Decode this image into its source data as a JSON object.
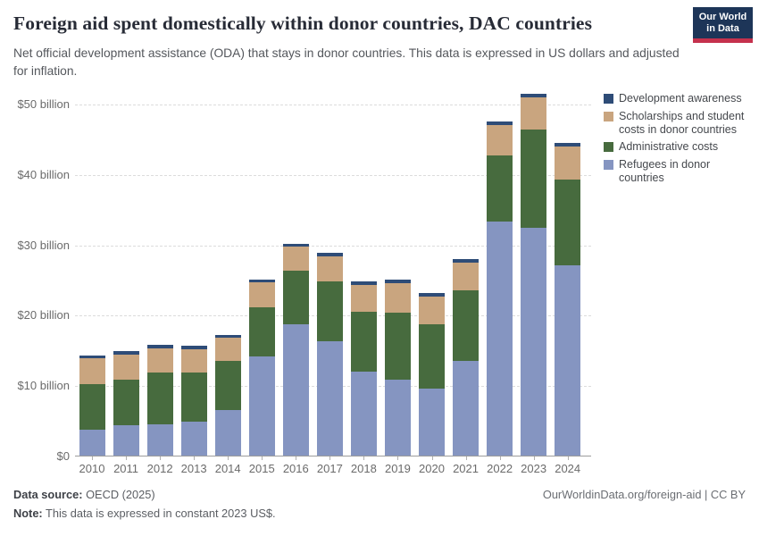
{
  "header": {
    "title": "Foreign aid spent domestically within donor countries, DAC countries",
    "subtitle": "Net official development assistance (ODA) that stays in donor countries. This data is expressed in US dollars and adjusted for inflation.",
    "logo": {
      "line1": "Our World",
      "line2": "in Data",
      "bg_color": "#1d3558",
      "stripe_color": "#c5314d"
    }
  },
  "chart_data": {
    "type": "bar",
    "stacked": true,
    "title": "Foreign aid spent domestically within donor countries, DAC countries",
    "unit": "US$ billion, constant 2023 prices",
    "categories": [
      "2010",
      "2011",
      "2012",
      "2013",
      "2014",
      "2015",
      "2016",
      "2017",
      "2018",
      "2019",
      "2020",
      "2021",
      "2022",
      "2023",
      "2024"
    ],
    "series": [
      {
        "name": "Refugees in donor countries",
        "color": "#8595c1",
        "values": [
          3.7,
          4.3,
          4.4,
          4.8,
          6.5,
          14.1,
          18.7,
          16.2,
          11.9,
          10.8,
          9.5,
          13.4,
          33.2,
          32.4,
          27.0
        ]
      },
      {
        "name": "Administrative costs",
        "color": "#476b3e",
        "values": [
          6.4,
          6.5,
          7.4,
          7.0,
          6.9,
          7.0,
          7.6,
          8.6,
          8.5,
          9.5,
          9.2,
          10.1,
          9.5,
          13.9,
          12.2
        ]
      },
      {
        "name": "Scholarships and student costs in donor countries",
        "color": "#c9a57f",
        "values": [
          3.7,
          3.5,
          3.4,
          3.3,
          3.3,
          3.5,
          3.4,
          3.5,
          3.9,
          4.2,
          3.9,
          3.9,
          4.3,
          4.6,
          4.7
        ]
      },
      {
        "name": "Development awareness",
        "color": "#2e4c77",
        "values": [
          0.4,
          0.5,
          0.5,
          0.5,
          0.4,
          0.4,
          0.4,
          0.5,
          0.5,
          0.5,
          0.5,
          0.5,
          0.5,
          0.5,
          0.5
        ]
      }
    ],
    "totals": [
      14.2,
      14.8,
      15.7,
      15.6,
      17.1,
      25.0,
      30.1,
      28.8,
      24.8,
      25.0,
      23.1,
      27.9,
      47.5,
      51.4,
      44.4
    ],
    "yticks": [
      {
        "value": 0,
        "label": "$0"
      },
      {
        "value": 10,
        "label": "$10 billion"
      },
      {
        "value": 20,
        "label": "$20 billion"
      },
      {
        "value": 30,
        "label": "$30 billion"
      },
      {
        "value": 40,
        "label": "$40 billion"
      },
      {
        "value": 50,
        "label": "$50 billion"
      }
    ],
    "ylim": [
      0,
      50
    ],
    "grid": "horizontal-dashed",
    "legend_position": "right",
    "legend": [
      {
        "label": "Development awareness",
        "color": "#2e4c77"
      },
      {
        "label": "Scholarships and student costs in donor countries",
        "color": "#c9a57f"
      },
      {
        "label": "Administrative costs",
        "color": "#476b3e"
      },
      {
        "label": "Refugees in donor countries",
        "color": "#8595c1"
      }
    ]
  },
  "footer": {
    "source_label": "Data source:",
    "source_value": " OECD (2025)",
    "note_label": "Note:",
    "note_value": " This data is expressed in constant 2023 US$.",
    "link": "OurWorldinData.org/foreign-aid | CC BY"
  }
}
